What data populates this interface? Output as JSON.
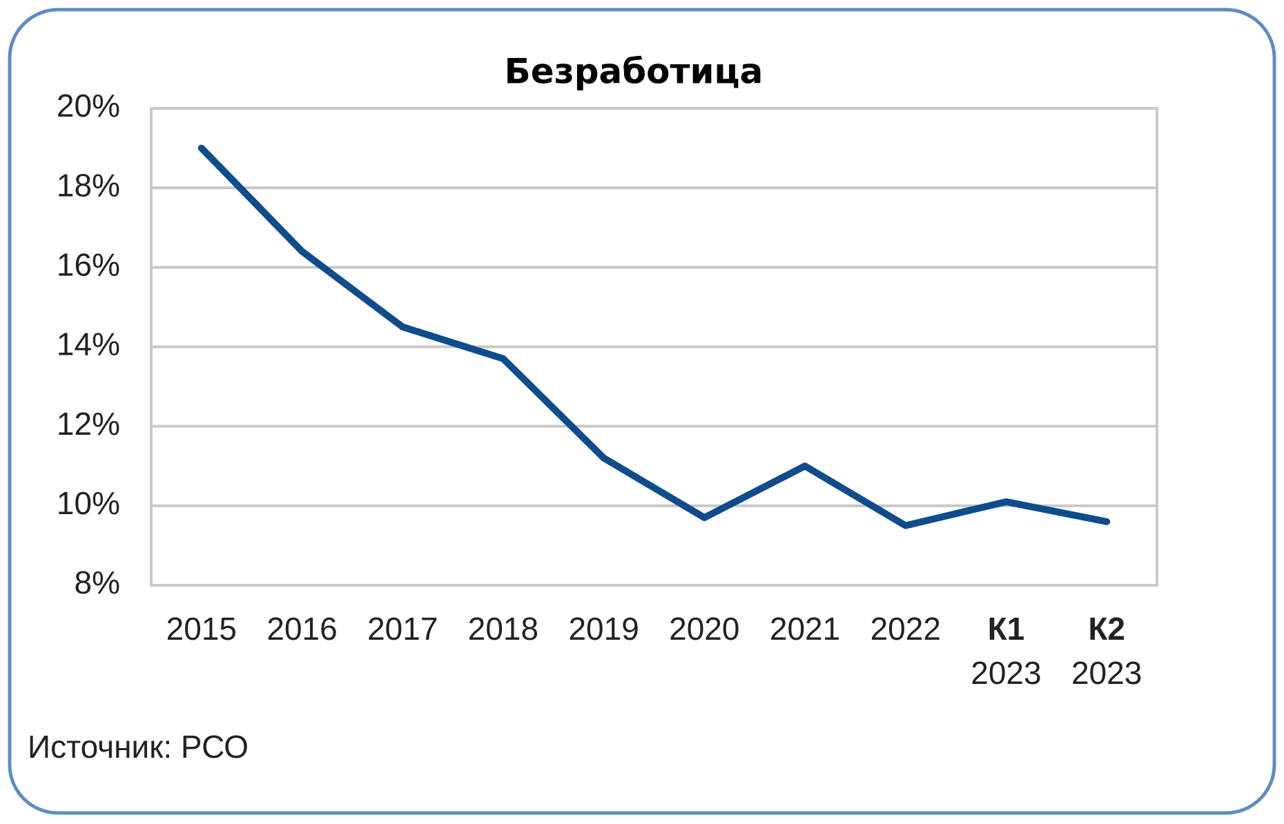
{
  "chart_data": {
    "type": "line",
    "title": "Безработица",
    "categories": [
      "2015",
      "2016",
      "2017",
      "2018",
      "2019",
      "2020",
      "2021",
      "2022",
      "К1 2023",
      "К2 2023"
    ],
    "series": [
      {
        "name": "Безработица",
        "color": "#0e4c8c",
        "values": [
          19.0,
          16.4,
          14.5,
          13.7,
          11.2,
          9.7,
          11.0,
          9.5,
          10.1,
          9.6
        ]
      }
    ],
    "ylim": [
      8,
      20
    ],
    "yticks": [
      {
        "value": 8,
        "label": "8%"
      },
      {
        "value": 10,
        "label": "10%"
      },
      {
        "value": 12,
        "label": "12%"
      },
      {
        "value": 14,
        "label": "14%"
      },
      {
        "value": 16,
        "label": "16%"
      },
      {
        "value": 18,
        "label": "18%"
      },
      {
        "value": 20,
        "label": "20%"
      }
    ],
    "grid": true,
    "source": "Источник: РСО"
  }
}
